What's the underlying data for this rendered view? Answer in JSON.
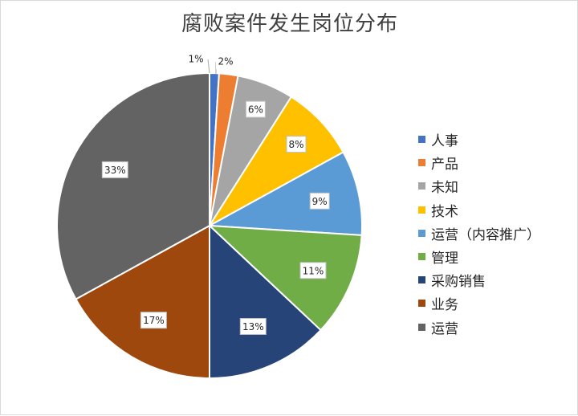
{
  "chart_data": {
    "type": "pie",
    "title": "腐败案件发生岗位分布",
    "legend_position": "right",
    "start_angle": "top, clockwise",
    "slices": [
      {
        "label": "人事",
        "value": 1,
        "display": "1%",
        "color": "#4472c4"
      },
      {
        "label": "产品",
        "value": 2,
        "display": "2%",
        "color": "#ed7d31"
      },
      {
        "label": "未知",
        "value": 6,
        "display": "6%",
        "color": "#a5a5a5"
      },
      {
        "label": "技术",
        "value": 8,
        "display": "8%",
        "color": "#ffc000"
      },
      {
        "label": "运营（内容推广）",
        "value": 9,
        "display": "9%",
        "color": "#5b9bd5"
      },
      {
        "label": "管理",
        "value": 11,
        "display": "11%",
        "color": "#70ad47"
      },
      {
        "label": "采购销售",
        "value": 13,
        "display": "13%",
        "color": "#264478"
      },
      {
        "label": "业务",
        "value": 17,
        "display": "17%",
        "color": "#9e480e"
      },
      {
        "label": "运营",
        "value": 33,
        "display": "33%",
        "color": "#636363"
      }
    ]
  }
}
